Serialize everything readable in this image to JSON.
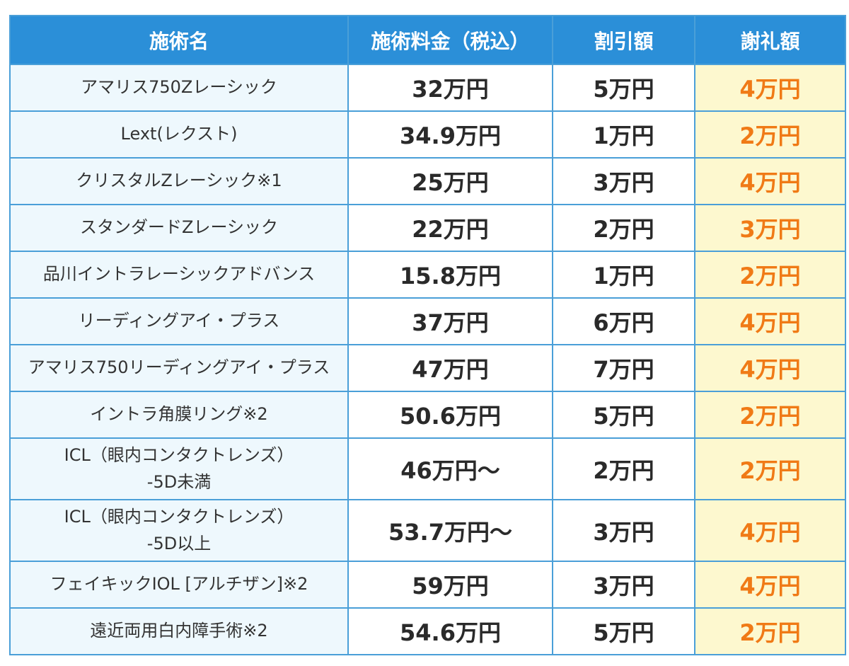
{
  "table": {
    "headers": [
      "施術名",
      "施術料金（税込）",
      "割引額",
      "謝礼額"
    ],
    "rows": [
      {
        "name": [
          "アマリス750Zレーシック"
        ],
        "price": "32万円",
        "discount": "5万円",
        "reward": "4万円"
      },
      {
        "name": [
          "Lext(レクスト)"
        ],
        "price": "34.9万円",
        "discount": "1万円",
        "reward": "2万円"
      },
      {
        "name": [
          "クリスタルZレーシック※1"
        ],
        "price": "25万円",
        "discount": "3万円",
        "reward": "4万円"
      },
      {
        "name": [
          "スタンダードZレーシック"
        ],
        "price": "22万円",
        "discount": "2万円",
        "reward": "3万円"
      },
      {
        "name": [
          "品川イントラレーシックアドバンス"
        ],
        "price": "15.8万円",
        "discount": "1万円",
        "reward": "2万円"
      },
      {
        "name": [
          "リーディングアイ・プラス"
        ],
        "price": "37万円",
        "discount": "6万円",
        "reward": "4万円"
      },
      {
        "name": [
          "アマリス750リーディングアイ・プラス"
        ],
        "price": "47万円",
        "discount": "7万円",
        "reward": "4万円"
      },
      {
        "name": [
          "イントラ角膜リング※2"
        ],
        "price": "50.6万円",
        "discount": "5万円",
        "reward": "2万円"
      },
      {
        "name": [
          "ICL（眼内コンタクトレンズ）",
          "-5D未満"
        ],
        "price": "46万円〜",
        "discount": "2万円",
        "reward": "2万円"
      },
      {
        "name": [
          "ICL（眼内コンタクトレンズ）",
          "-5D以上"
        ],
        "price": "53.7万円〜",
        "discount": "3万円",
        "reward": "4万円"
      },
      {
        "name": [
          "フェイキックIOL [アルチザン]※2"
        ],
        "price": "59万円",
        "discount": "3万円",
        "reward": "4万円"
      },
      {
        "name": [
          "遠近両用白内障手術※2"
        ],
        "price": "54.6万円",
        "discount": "5万円",
        "reward": "2万円"
      }
    ]
  },
  "colors": {
    "header_bg": "#2b8fd8",
    "border": "#4a9fd8",
    "name_bg": "#eef8fd",
    "reward_bg": "#fdf8cf",
    "reward_text": "#f07a16"
  }
}
